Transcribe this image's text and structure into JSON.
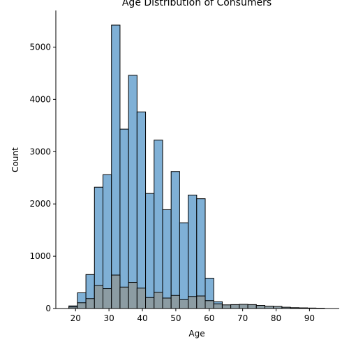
{
  "chart_data": {
    "type": "bar",
    "title": "Age Distribution of Consumers",
    "xlabel": "Age",
    "ylabel": "Count",
    "xlim": [
      14.1,
      98.9
    ],
    "ylim": [
      0,
      5700
    ],
    "xticks": [
      20,
      30,
      40,
      50,
      60,
      70,
      80,
      90
    ],
    "yticks": [
      0,
      1000,
      2000,
      3000,
      4000,
      5000
    ],
    "grid": false,
    "bin_edges": [
      18,
      20.55,
      23.1,
      25.65,
      28.2,
      30.75,
      33.3,
      35.85,
      38.4,
      40.95,
      43.5,
      46.05,
      48.6,
      51.15,
      53.7,
      56.25,
      58.8,
      61.35,
      63.9,
      66.45,
      69,
      71.55,
      74.1,
      76.65,
      79.2,
      81.75,
      84.3,
      86.85,
      89.4,
      91.95,
      94.5
    ],
    "series": [
      {
        "color": "#7fb0d6",
        "edge": "#000000",
        "values": [
          50,
          300,
          650,
          2320,
          2560,
          5420,
          3430,
          4460,
          3760,
          2200,
          3220,
          1890,
          2620,
          1640,
          2170,
          2100,
          580,
          130,
          60,
          65,
          75,
          70,
          55,
          40,
          35,
          20,
          15,
          10,
          8,
          5
        ]
      },
      {
        "color": "#8c9ca3",
        "edge": "#000000",
        "values": [
          30,
          110,
          190,
          440,
          380,
          640,
          410,
          500,
          390,
          210,
          310,
          200,
          250,
          170,
          230,
          240,
          150,
          90,
          70,
          75,
          80,
          75,
          60,
          45,
          40,
          25,
          15,
          12,
          8,
          5
        ]
      }
    ]
  }
}
